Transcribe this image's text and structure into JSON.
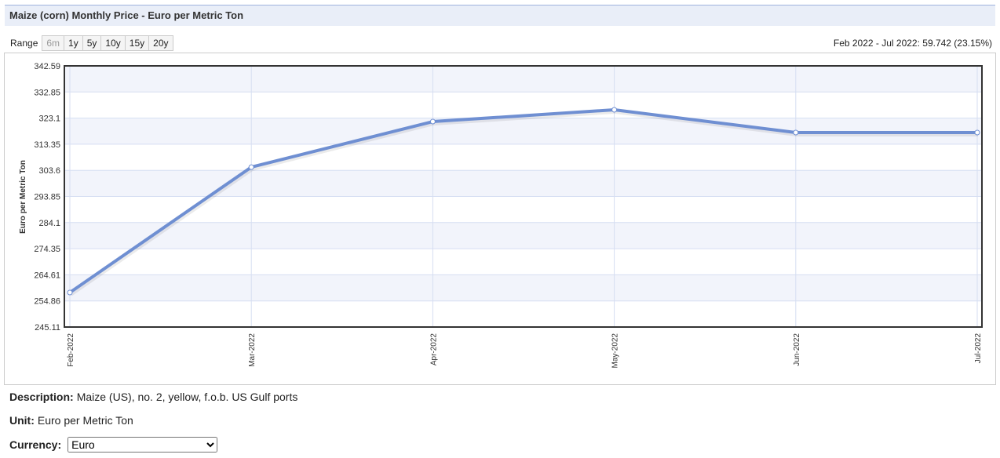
{
  "header": {
    "title": "Maize (corn) Monthly Price - Euro per Metric Ton"
  },
  "range": {
    "label": "Range",
    "options": [
      "6m",
      "1y",
      "5y",
      "10y",
      "15y",
      "20y"
    ]
  },
  "summary": "Feb 2022 - Jul 2022: 59.742 (23.15%)",
  "chart_data": {
    "type": "line",
    "ylabel": "Euro per Metric Ton",
    "categories": [
      "Feb-2022",
      "Mar-2022",
      "Apr-2022",
      "May-2022",
      "Jun-2022",
      "Jul-2022"
    ],
    "values": [
      258.0,
      304.8,
      321.8,
      326.2,
      317.7,
      317.7
    ],
    "color": "#6f8fd2",
    "ylim": [
      245.11,
      342.59
    ],
    "yticks": [
      245.11,
      254.86,
      264.61,
      274.35,
      284.1,
      293.85,
      303.6,
      313.35,
      323.1,
      332.85,
      342.59
    ],
    "grid": true
  },
  "description": {
    "label": "Description:",
    "text": "Maize (US), no. 2, yellow, f.o.b. US Gulf ports"
  },
  "unit": {
    "label": "Unit:",
    "text": "Euro per Metric Ton"
  },
  "currency": {
    "label": "Currency:",
    "selected": "Euro"
  }
}
